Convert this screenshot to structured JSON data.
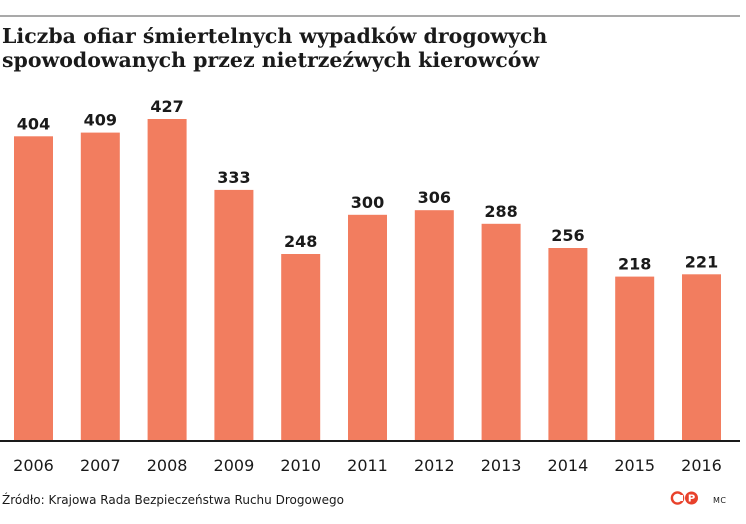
{
  "title_lines": [
    "Liczba ofiar śmiertelnych wypadków drogowych",
    "spowodowanych przez nietrzeźwych kierowców"
  ],
  "source": "Źródło: Krajowa Rada Bezpieczeństwa Ruchu Drogowego",
  "credit": "MC",
  "logo": {
    "icon": "cp-logo-icon",
    "color": "#e8412b"
  },
  "colors": {
    "bar": "#f27d5f",
    "axis": "#1a1a1a",
    "top_rule": "#a9a9a9"
  },
  "chart_data": {
    "type": "bar",
    "categories": [
      "2006",
      "2007",
      "2008",
      "2009",
      "2010",
      "2011",
      "2012",
      "2013",
      "2014",
      "2015",
      "2016"
    ],
    "values": [
      404,
      409,
      427,
      333,
      248,
      300,
      306,
      288,
      256,
      218,
      221
    ],
    "ylim": [
      0,
      427
    ],
    "data_labels": true,
    "grid": false,
    "legend": "none"
  }
}
